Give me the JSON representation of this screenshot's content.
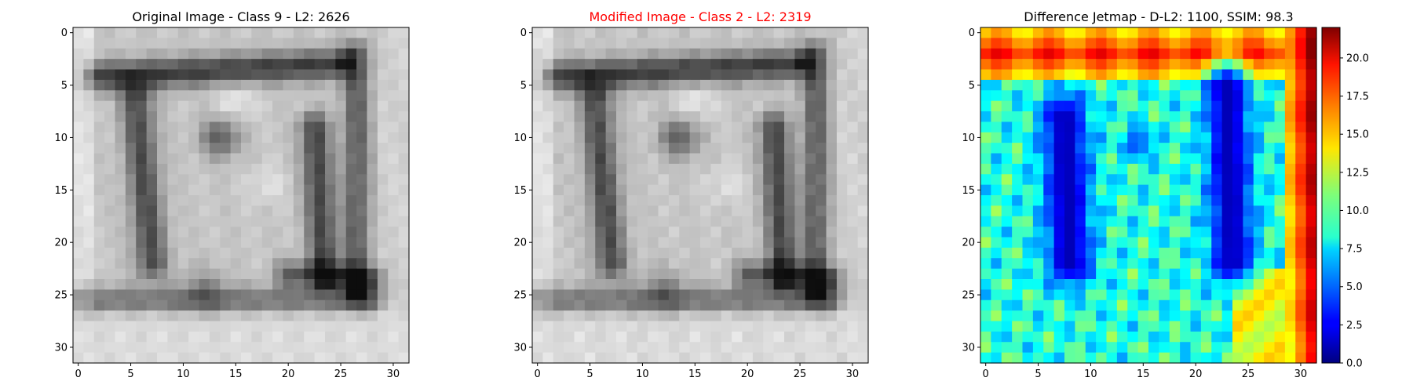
{
  "figure": {
    "panels": [
      {
        "id": "original",
        "title": "Original Image - Class 9 - L2: 2626",
        "title_color": "#000000",
        "colormap": "gray",
        "xticks": [
          "0",
          "5",
          "10",
          "15",
          "20",
          "25",
          "30"
        ],
        "yticks": [
          "0",
          "5",
          "10",
          "15",
          "20",
          "25",
          "30"
        ]
      },
      {
        "id": "modified",
        "title": "Modified Image - Class 2 - L2: 2319",
        "title_color": "#ff0000",
        "colormap": "gray",
        "xticks": [
          "0",
          "5",
          "10",
          "15",
          "20",
          "25",
          "30"
        ],
        "yticks": [
          "0",
          "5",
          "10",
          "15",
          "20",
          "25",
          "30"
        ]
      },
      {
        "id": "difference",
        "title": "Difference Jetmap - D-L2: 1100, SSIM: 98.3",
        "title_color": "#000000",
        "colormap": "jet",
        "xticks": [
          "0",
          "5",
          "10",
          "15",
          "20",
          "25",
          "30"
        ],
        "yticks": [
          "0",
          "5",
          "10",
          "15",
          "20",
          "25",
          "30"
        ]
      }
    ],
    "colorbar": {
      "ticks": [
        "0.0",
        "2.5",
        "5.0",
        "7.5",
        "10.0",
        "12.5",
        "15.0",
        "17.5",
        "20.0"
      ],
      "range": [
        0,
        22
      ]
    }
  }
}
